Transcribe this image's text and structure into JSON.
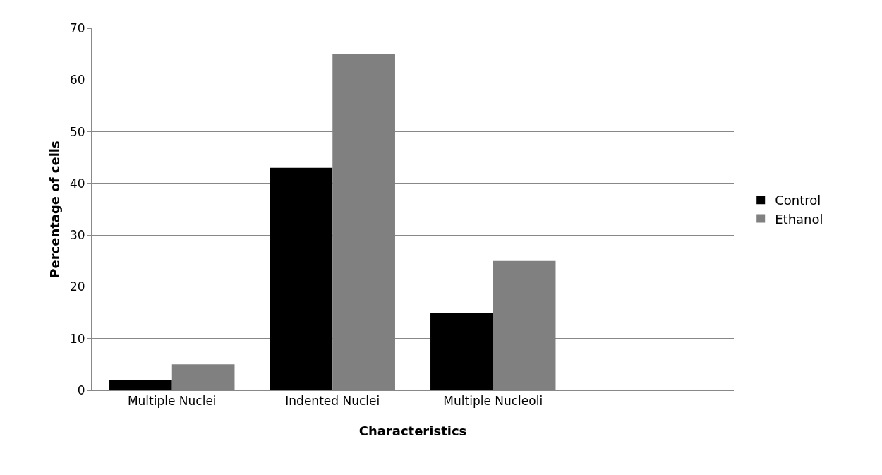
{
  "chart_data": {
    "type": "bar",
    "xlabel": "Characteristics",
    "ylabel": "Percentage of cells",
    "categories": [
      "Multiple Nuclei",
      "Indented Nuclei",
      "Multiple Nucleoli",
      null
    ],
    "series": [
      {
        "name": "Control",
        "color": "#000000",
        "values": [
          2,
          43,
          15,
          null
        ]
      },
      {
        "name": "Ethanol",
        "color": "#808080",
        "values": [
          5,
          65,
          25,
          null
        ]
      }
    ],
    "ylim": [
      0,
      70
    ],
    "yticks": [
      0,
      10,
      20,
      30,
      40,
      50,
      60,
      70
    ],
    "grid": "y",
    "legend": "right"
  }
}
